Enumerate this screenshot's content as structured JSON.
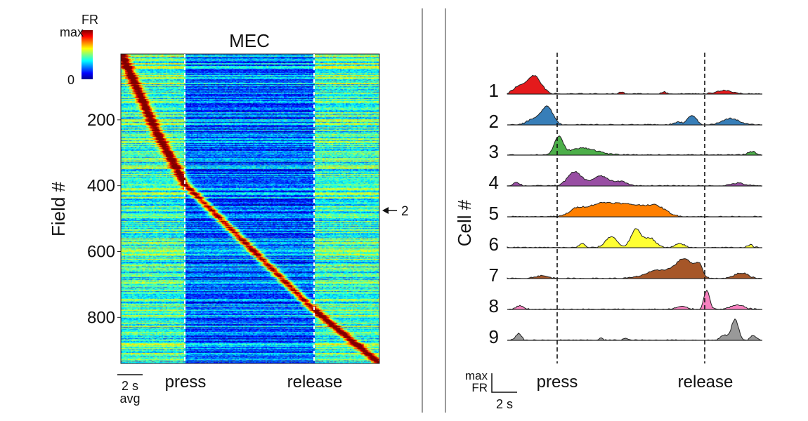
{
  "chart_data": [
    {
      "type": "heatmap",
      "title": "MEC",
      "ylabel": "Field #",
      "yticks": [
        200,
        400,
        600,
        800
      ],
      "ylim": [
        0,
        940
      ],
      "colorbar": {
        "label": "FR",
        "max_label": "max",
        "min_label": "0",
        "colormap": "jet"
      },
      "events": [
        "press",
        "release"
      ],
      "scalebar": {
        "label": "2 s",
        "sublabel": "avg"
      },
      "annotation": {
        "label": "2",
        "field": 485
      }
    },
    {
      "type": "area",
      "ylabel": "Cell #",
      "cells": [
        {
          "name": "1",
          "color": "#e41a1c"
        },
        {
          "name": "2",
          "color": "#377eb8"
        },
        {
          "name": "3",
          "color": "#4daf4a"
        },
        {
          "name": "4",
          "color": "#984ea3"
        },
        {
          "name": "5",
          "color": "#ff7f00"
        },
        {
          "name": "6",
          "color": "#ffff33"
        },
        {
          "name": "7",
          "color": "#a65628"
        },
        {
          "name": "8",
          "color": "#f781bf"
        },
        {
          "name": "9",
          "color": "#999999"
        }
      ],
      "events": [
        "press",
        "release"
      ],
      "scalebar": {
        "y_label_top": "max",
        "y_label_bottom": "FR",
        "x_label": "2 s"
      }
    }
  ]
}
